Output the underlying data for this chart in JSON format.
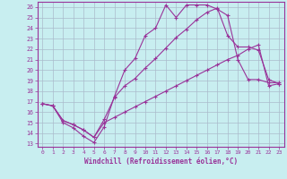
{
  "background_color": "#c8eef0",
  "grid_color": "#aabbcc",
  "line_color": "#993399",
  "xlabel": "Windchill (Refroidissement éolien,°C)",
  "xlim": [
    -0.5,
    23.5
  ],
  "ylim": [
    12.7,
    26.5
  ],
  "yticks": [
    13,
    14,
    15,
    16,
    17,
    18,
    19,
    20,
    21,
    22,
    23,
    24,
    25,
    26
  ],
  "xticks": [
    0,
    1,
    2,
    3,
    4,
    5,
    6,
    7,
    8,
    9,
    10,
    11,
    12,
    13,
    14,
    15,
    16,
    17,
    18,
    19,
    20,
    21,
    22,
    23
  ],
  "curve1_x": [
    0,
    1,
    2,
    3,
    4,
    5,
    6,
    7,
    8,
    9,
    10,
    11,
    12,
    13,
    14,
    15,
    16,
    17,
    18,
    19,
    20,
    21,
    22,
    23
  ],
  "curve1_y": [
    16.8,
    16.6,
    15.0,
    14.5,
    13.7,
    13.1,
    14.6,
    17.5,
    20.0,
    21.1,
    23.3,
    24.0,
    26.2,
    25.0,
    26.2,
    26.2,
    26.2,
    25.8,
    25.2,
    21.0,
    19.1,
    19.1,
    18.8,
    18.8
  ],
  "curve2_x": [
    0,
    1,
    2,
    3,
    4,
    5,
    6,
    7,
    8,
    9,
    10,
    11,
    12,
    13,
    14,
    15,
    16,
    17,
    18,
    19,
    20,
    21,
    22,
    23
  ],
  "curve2_y": [
    16.8,
    16.6,
    15.2,
    14.8,
    14.3,
    13.6,
    15.3,
    17.4,
    18.5,
    19.2,
    20.2,
    21.1,
    22.1,
    23.1,
    23.9,
    24.8,
    25.5,
    25.9,
    23.3,
    22.2,
    22.2,
    21.9,
    19.1,
    18.7
  ],
  "curve3_x": [
    0,
    1,
    2,
    3,
    4,
    5,
    6,
    7,
    8,
    9,
    10,
    11,
    12,
    13,
    14,
    15,
    16,
    17,
    18,
    19,
    20,
    21,
    22,
    23
  ],
  "curve3_y": [
    16.8,
    16.6,
    15.2,
    14.8,
    14.3,
    13.6,
    15.0,
    15.5,
    16.0,
    16.5,
    17.0,
    17.5,
    18.0,
    18.5,
    19.0,
    19.5,
    20.0,
    20.5,
    21.0,
    21.4,
    22.0,
    22.4,
    18.5,
    18.7
  ]
}
